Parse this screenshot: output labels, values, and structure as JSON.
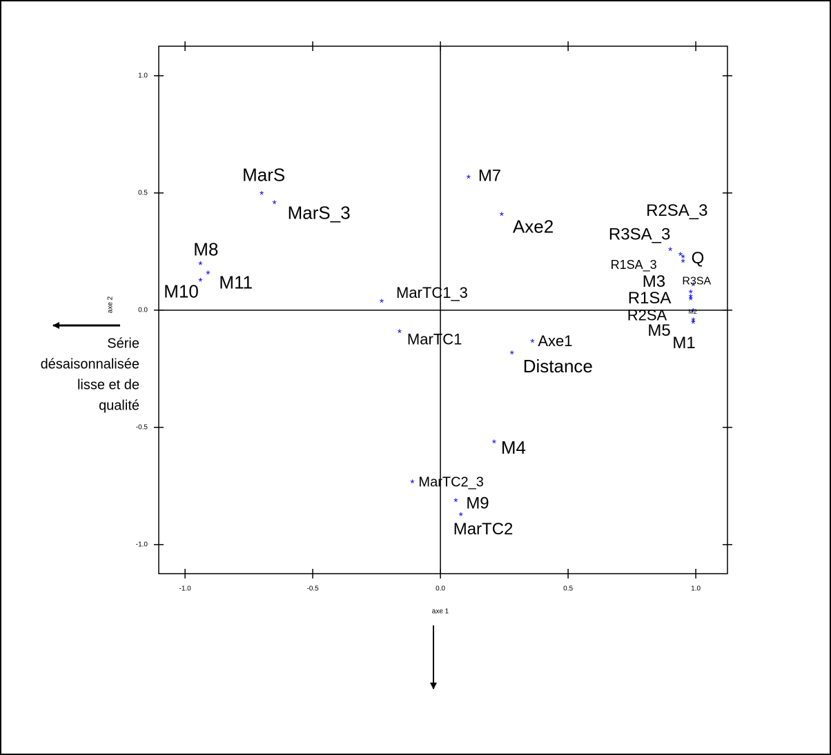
{
  "chart_data": {
    "type": "scatter",
    "x_label": "axe 1",
    "y_label": "axe 2",
    "annotation": [
      "Série",
      "désaisonnalisée",
      "lisse et de",
      "qualité"
    ],
    "point_labels": [
      "MarS",
      "MarS_3",
      "M8",
      "M11",
      "M10",
      "M7",
      "Axe2",
      "MarTC1_3",
      "MarTC1",
      "Axe1",
      "Distance",
      "M4",
      "MarTC2_3",
      "M9",
      "MarTC2",
      "R2SA_3",
      "R3SA_3",
      "R1SA_3",
      "Q",
      "M3",
      "R3SA",
      "R1SA",
      "R2SA",
      "M2",
      "M5",
      "M1"
    ],
    "x": [
      -0.7,
      -0.65,
      -0.94,
      -0.91,
      -0.94,
      0.11,
      0.24,
      -0.23,
      -0.16,
      0.36,
      0.28,
      0.21,
      -0.11,
      0.06,
      0.08,
      0.9,
      0.94,
      0.95,
      0.95,
      0.98,
      0.99,
      0.98,
      0.98,
      0.99,
      0.99,
      0.99
    ],
    "values": [
      0.5,
      0.46,
      0.2,
      0.16,
      0.13,
      0.57,
      0.41,
      0.04,
      -0.09,
      -0.13,
      -0.18,
      -0.56,
      -0.73,
      -0.81,
      -0.87,
      0.26,
      0.24,
      0.21,
      0.23,
      0.08,
      0.11,
      0.06,
      0.05,
      0.0,
      -0.04,
      -0.05
    ],
    "color": "#0000ff",
    "xlim": [
      -1.103,
      1.124
    ],
    "ylim": [
      -1.124,
      1.126
    ],
    "xticks": [
      {
        "value": -1,
        "label": "-1.0"
      },
      {
        "value": -0.5,
        "label": "-0.5"
      },
      {
        "value": 0,
        "label": "0.0"
      },
      {
        "value": 0.5,
        "label": "0.5"
      },
      {
        "value": 1,
        "label": "1.0"
      }
    ],
    "yticks": [
      {
        "value": -1,
        "label": "-1.0"
      },
      {
        "value": -0.5,
        "label": "-0.5"
      },
      {
        "value": 0,
        "label": "0.0"
      },
      {
        "value": 0.5,
        "label": "0.5"
      },
      {
        "value": 1,
        "label": "1.0"
      }
    ],
    "zero_lines": true,
    "grid": false
  }
}
